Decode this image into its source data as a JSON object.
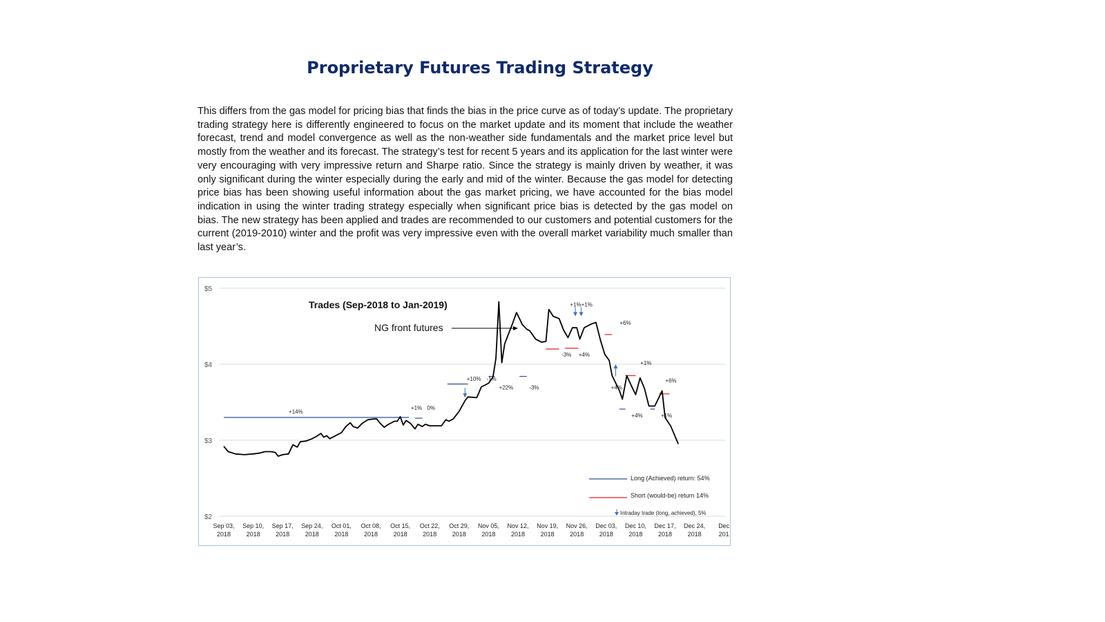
{
  "page": {
    "title": "Proprietary Futures Trading Strategy",
    "body": "This differs from the gas model for pricing bias that finds the bias in the price curve as of today’s update. The proprietary trading strategy here is differently engineered to focus on the market update and its moment that include the weather forecast, trend and model convergence as well as the non-weather side fundamentals and the market price level but mostly from the weather and its forecast. The strategy’s test for recent 5 years and its application for the last winter were very encouraging with very impressive return and Sharpe ratio.  Since the strategy is mainly driven by weather, it was only significant during the winter especially during the early and mid of the winter. Because the gas model for detecting price bias has been showing useful information about the gas market pricing, we have accounted for the bias model indication in using the winter trading strategy especially when significant price bias is detected by the gas model on bias. The new strategy has been applied and trades are recommended to our customers and potential customers for the current (2019-2010) winter and the profit was very impressive even with the overall market variability much smaller than last year’s."
  },
  "chart_data": {
    "type": "line",
    "title": "Trades (Sep-2018  to Jan-2019)",
    "series_callout": "NG front futures",
    "y_ticks": [
      "$5",
      "$4",
      "$3",
      "$2"
    ],
    "ylim": [
      2,
      5
    ],
    "x_tick_labels": [
      [
        "Sep 03,",
        "2018"
      ],
      [
        "Sep 10,",
        "2018"
      ],
      [
        "Sep 17,",
        "2018"
      ],
      [
        "Sep 24,",
        "2018"
      ],
      [
        "Oct 01,",
        "2018"
      ],
      [
        "Oct 08,",
        "2018"
      ],
      [
        "Oct 15,",
        "2018"
      ],
      [
        "Oct 22,",
        "2018"
      ],
      [
        "Oct 29,",
        "2018"
      ],
      [
        "Nov 05,",
        "2018"
      ],
      [
        "Nov 12,",
        "2018"
      ],
      [
        "Nov 19,",
        "2018"
      ],
      [
        "Nov 26,",
        "2018"
      ],
      [
        "Dec 03,",
        "2018"
      ],
      [
        "Dec 10,",
        "2018"
      ],
      [
        "Dec 17,",
        "2018"
      ],
      [
        "Dec 24,",
        "2018"
      ],
      [
        "Dec",
        "201"
      ]
    ],
    "colors": {
      "price": "#000000",
      "long": "#2f4f9a",
      "short": "#e02020",
      "intraday": "#3a6fc4"
    },
    "price_series": [
      [
        0,
        2.92
      ],
      [
        0.15,
        2.85
      ],
      [
        0.4,
        2.82
      ],
      [
        0.7,
        2.81
      ],
      [
        1.0,
        2.82
      ],
      [
        1.2,
        2.83
      ],
      [
        1.4,
        2.85
      ],
      [
        1.6,
        2.85
      ],
      [
        1.75,
        2.84
      ],
      [
        1.85,
        2.79
      ],
      [
        2.0,
        2.81
      ],
      [
        2.2,
        2.82
      ],
      [
        2.35,
        2.94
      ],
      [
        2.5,
        2.91
      ],
      [
        2.6,
        2.98
      ],
      [
        2.8,
        2.99
      ],
      [
        3.0,
        3.02
      ],
      [
        3.15,
        3.05
      ],
      [
        3.3,
        3.09
      ],
      [
        3.4,
        3.04
      ],
      [
        3.5,
        3.06
      ],
      [
        3.6,
        3.02
      ],
      [
        3.8,
        3.06
      ],
      [
        4.0,
        3.1
      ],
      [
        4.15,
        3.18
      ],
      [
        4.3,
        3.23
      ],
      [
        4.4,
        3.18
      ],
      [
        4.55,
        3.16
      ],
      [
        4.7,
        3.22
      ],
      [
        4.9,
        3.27
      ],
      [
        5.1,
        3.28
      ],
      [
        5.2,
        3.28
      ],
      [
        5.3,
        3.23
      ],
      [
        5.45,
        3.17
      ],
      [
        5.6,
        3.21
      ],
      [
        5.8,
        3.25
      ],
      [
        5.9,
        3.25
      ],
      [
        6.0,
        3.31
      ],
      [
        6.1,
        3.2
      ],
      [
        6.2,
        3.26
      ],
      [
        6.35,
        3.22
      ],
      [
        6.5,
        3.15
      ],
      [
        6.6,
        3.21
      ],
      [
        6.75,
        3.18
      ],
      [
        6.85,
        3.21
      ],
      [
        7.0,
        3.19
      ],
      [
        7.4,
        3.19
      ],
      [
        7.55,
        3.27
      ],
      [
        7.65,
        3.25
      ],
      [
        7.8,
        3.28
      ],
      [
        8.0,
        3.38
      ],
      [
        8.2,
        3.52
      ],
      [
        8.3,
        3.57
      ],
      [
        8.6,
        3.56
      ],
      [
        8.75,
        3.7
      ],
      [
        9.0,
        3.75
      ],
      [
        9.15,
        3.83
      ],
      [
        9.25,
        4.08
      ],
      [
        9.35,
        4.82
      ],
      [
        9.45,
        4.02
      ],
      [
        9.55,
        4.27
      ],
      [
        9.8,
        4.52
      ],
      [
        9.95,
        4.68
      ],
      [
        10.15,
        4.52
      ],
      [
        10.3,
        4.46
      ],
      [
        10.4,
        4.44
      ],
      [
        10.6,
        4.33
      ],
      [
        10.8,
        4.29
      ],
      [
        10.95,
        4.3
      ],
      [
        11.05,
        4.72
      ],
      [
        11.2,
        4.63
      ],
      [
        11.4,
        4.6
      ],
      [
        11.55,
        4.45
      ],
      [
        11.7,
        4.35
      ],
      [
        11.85,
        4.48
      ],
      [
        12.0,
        4.48
      ],
      [
        12.1,
        4.33
      ],
      [
        12.25,
        4.48
      ],
      [
        12.5,
        4.53
      ],
      [
        12.65,
        4.55
      ],
      [
        12.8,
        4.32
      ],
      [
        12.95,
        4.13
      ],
      [
        13.1,
        4.05
      ],
      [
        13.2,
        3.85
      ],
      [
        13.45,
        3.65
      ],
      [
        13.55,
        3.54
      ],
      [
        13.7,
        3.85
      ],
      [
        13.85,
        3.72
      ],
      [
        14.0,
        3.6
      ],
      [
        14.15,
        3.82
      ],
      [
        14.3,
        3.68
      ],
      [
        14.45,
        3.45
      ],
      [
        14.65,
        3.45
      ],
      [
        14.75,
        3.53
      ],
      [
        14.9,
        3.65
      ],
      [
        15.0,
        3.3
      ],
      [
        15.2,
        3.18
      ],
      [
        15.45,
        2.95
      ]
    ],
    "trade_lines": [
      {
        "kind": "long",
        "x0": 0.0,
        "x1": 6.3,
        "y": 3.3
      },
      {
        "kind": "long",
        "x0": 6.5,
        "x1": 6.75,
        "y": 3.29
      },
      {
        "kind": "long",
        "x0": 7.6,
        "x1": 8.3,
        "y": 3.74
      },
      {
        "kind": "long",
        "x0": 9.0,
        "x1": 9.2,
        "y": 3.84
      },
      {
        "kind": "long",
        "x0": 10.05,
        "x1": 10.3,
        "y": 3.84
      },
      {
        "kind": "long",
        "x0": 13.45,
        "x1": 13.65,
        "y": 3.41
      },
      {
        "kind": "long",
        "x0": 14.5,
        "x1": 14.65,
        "y": 3.41
      },
      {
        "kind": "short",
        "x0": 10.95,
        "x1": 11.4,
        "y": 4.2
      },
      {
        "kind": "short",
        "x0": 11.6,
        "x1": 12.05,
        "y": 4.21
      },
      {
        "kind": "short",
        "x0": 12.95,
        "x1": 13.2,
        "y": 4.39
      },
      {
        "kind": "short",
        "x0": 13.65,
        "x1": 14.0,
        "y": 3.85
      },
      {
        "kind": "short",
        "x0": 14.8,
        "x1": 15.15,
        "y": 3.61
      }
    ],
    "intraday_arrows": [
      {
        "x": 8.2,
        "y_from": 3.69,
        "y_to": 3.57,
        "dir": "down"
      },
      {
        "x": 11.95,
        "y_from": 4.75,
        "y_to": 4.64,
        "dir": "down"
      },
      {
        "x": 12.15,
        "y_from": 4.75,
        "y_to": 4.64,
        "dir": "down"
      },
      {
        "x": 13.32,
        "y_from": 3.84,
        "y_to": 3.99,
        "dir": "up"
      }
    ],
    "annotations": [
      {
        "text": "+14%",
        "x": 2.45,
        "y": 3.35
      },
      {
        "text": "+1%",
        "x": 6.55,
        "y": 3.4
      },
      {
        "text": "0%",
        "x": 7.05,
        "y": 3.4
      },
      {
        "text": "+10%",
        "x": 8.5,
        "y": 3.78
      },
      {
        "text": "-1%",
        "x": 9.1,
        "y": 3.78
      },
      {
        "text": "+22%",
        "x": 9.6,
        "y": 3.67
      },
      {
        "text": "-3%",
        "x": 10.55,
        "y": 3.67
      },
      {
        "text": "-3%",
        "x": 11.65,
        "y": 4.1
      },
      {
        "text": "+4%",
        "x": 12.25,
        "y": 4.1
      },
      {
        "text": "+1%+1%",
        "x": 12.15,
        "y": 4.76
      },
      {
        "text": "+6%",
        "x": 13.65,
        "y": 4.52
      },
      {
        "text": "+4%",
        "x": 13.35,
        "y": 3.67
      },
      {
        "text": "+1%",
        "x": 14.35,
        "y": 3.99
      },
      {
        "text": "+6%",
        "x": 15.2,
        "y": 3.76
      },
      {
        "text": "+4%",
        "x": 14.05,
        "y": 3.3
      },
      {
        "text": "+1%",
        "x": 15.05,
        "y": 3.3
      }
    ],
    "legend": {
      "long": "Long (Achieved)   return: 54%",
      "short": "Short (would-be)  return 14%",
      "intraday": "Intraday trade (long, achieved), 5%"
    }
  }
}
